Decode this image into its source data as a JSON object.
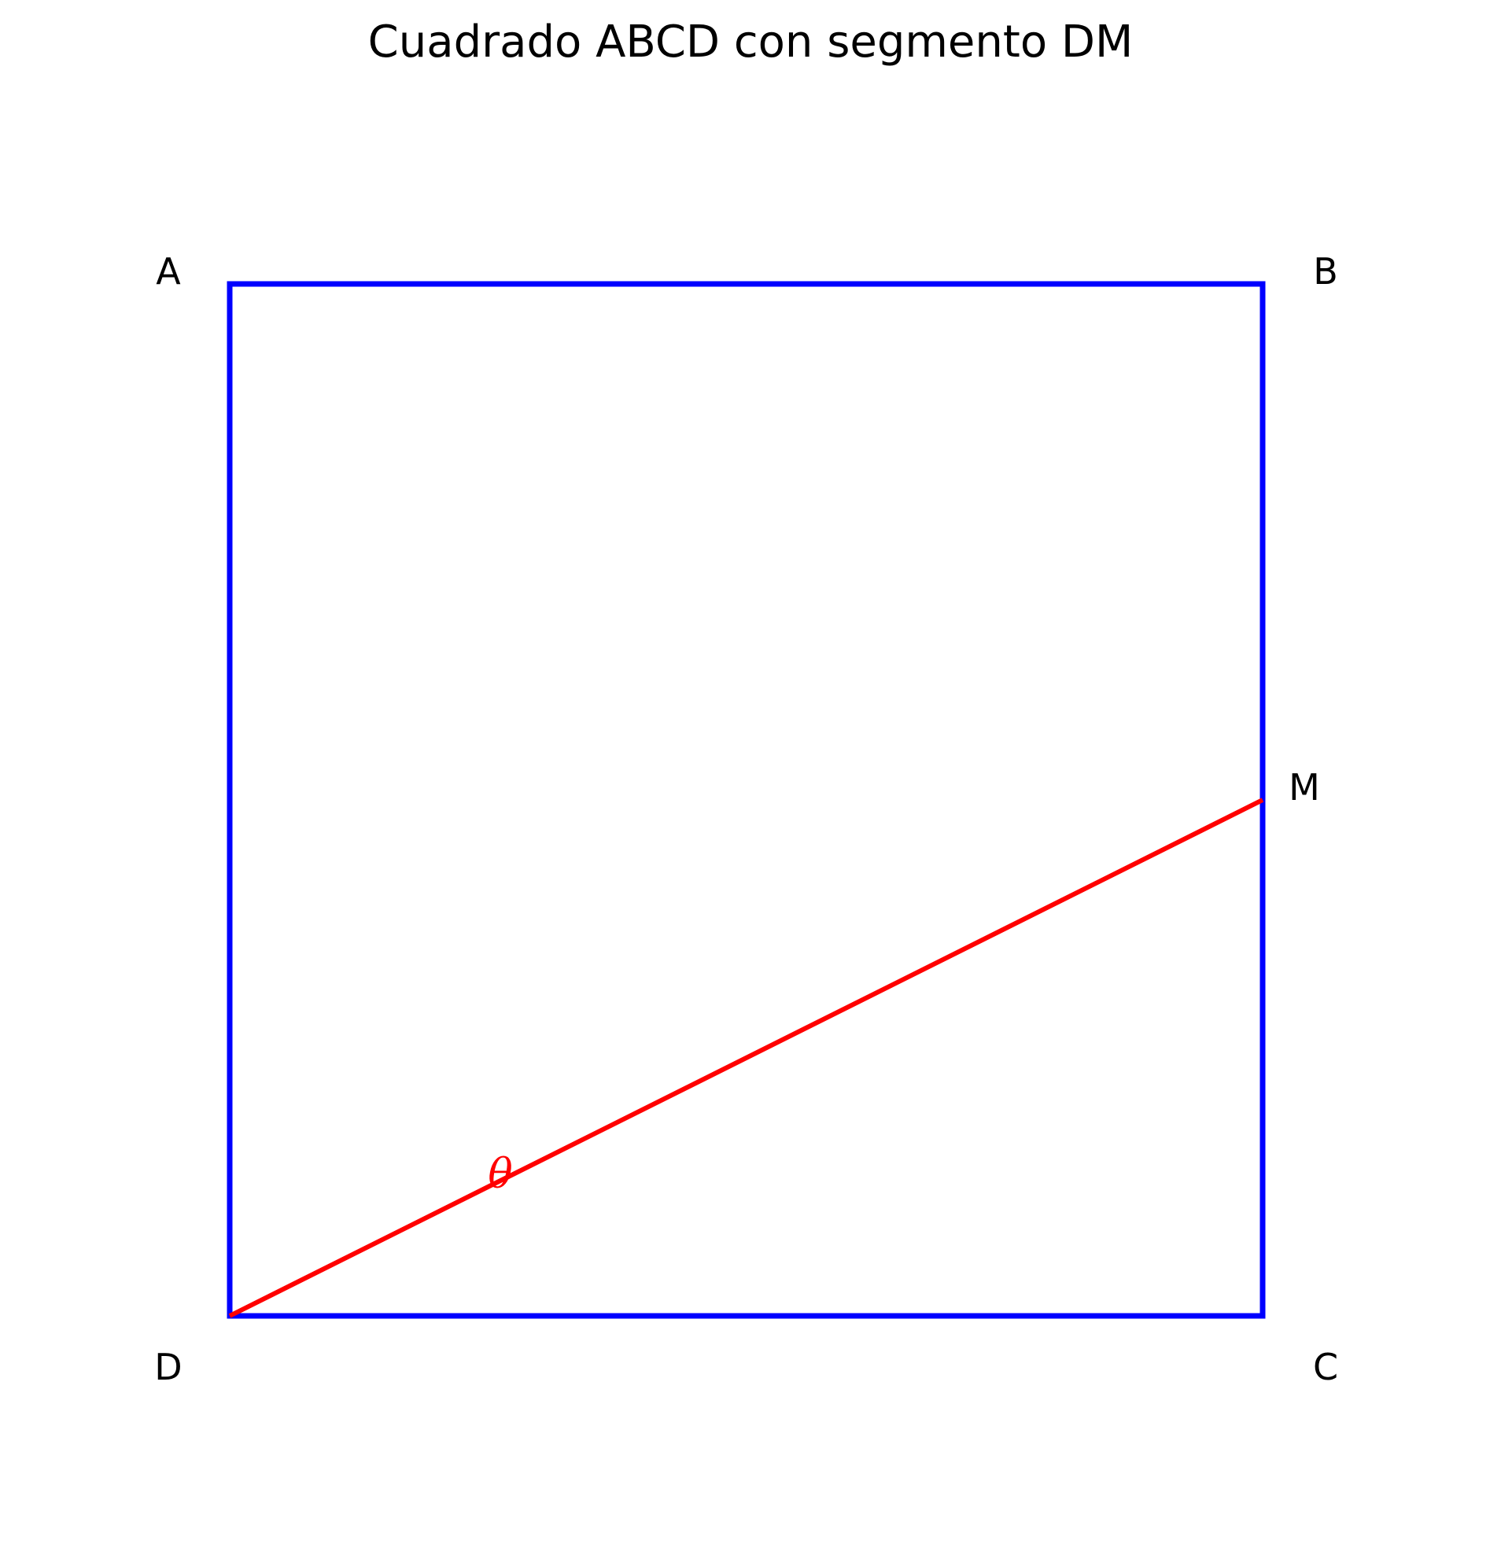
{
  "title": "Cuadrado ABCD con segmento DM",
  "vertices": {
    "A": "A",
    "B": "B",
    "C": "C",
    "D": "D",
    "M": "M"
  },
  "angle_label": "θ",
  "colors": {
    "square": "#0000ff",
    "segment": "#ff0000",
    "text": "#000000"
  }
}
